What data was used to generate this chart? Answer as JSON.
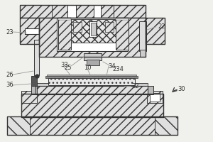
{
  "bg_color": "#f0f0ec",
  "lc": "#333333",
  "fc_hatch": "#e0e0e0",
  "fc_white": "#ffffff",
  "label_fs": 6.0,
  "label_color": "#333333"
}
